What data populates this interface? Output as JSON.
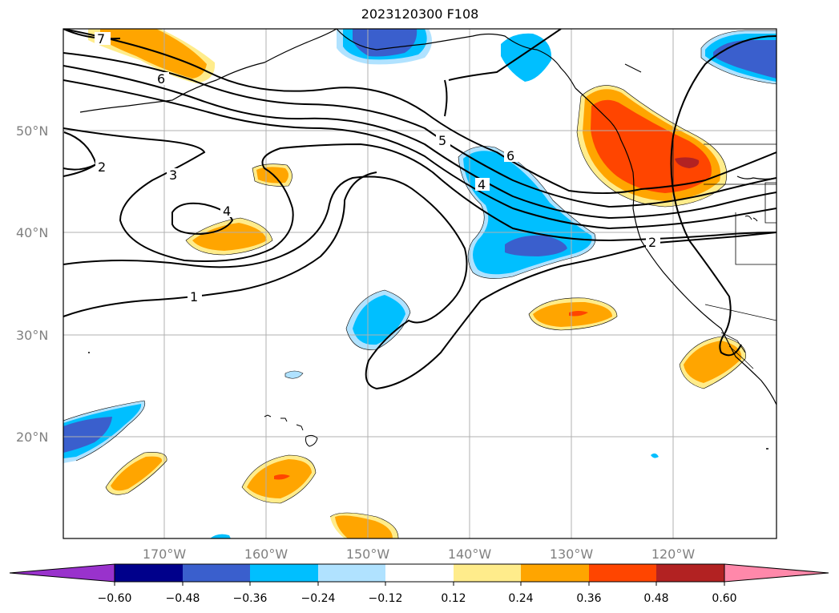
{
  "title": "2023120300 F108",
  "lat_labels": [
    "50°N",
    "40°N",
    "30°N",
    "20°N"
  ],
  "lon_labels": [
    "170°W",
    "160°W",
    "150°W",
    "140°W",
    "130°W",
    "120°W"
  ],
  "contour_labels": [
    "7",
    "6",
    "2",
    "3",
    "4",
    "1",
    "5",
    "4",
    "6",
    "2"
  ],
  "colorbar": {
    "ticks": [
      "−0.60",
      "−0.48",
      "−0.36",
      "−0.24",
      "−0.12",
      "0.12",
      "0.24",
      "0.36",
      "0.48",
      "0.60"
    ],
    "colors": [
      "#9932cc",
      "#00008b",
      "#3a5fcd",
      "#00bfff",
      "#b0e2ff",
      "#ffffff",
      "#ffec8b",
      "#ffa500",
      "#ff4500",
      "#b22222",
      "#ff88aa"
    ]
  },
  "colors": {
    "orange": "#ffa500",
    "light_yellow": "#ffec8b",
    "red_orange": "#ff4500",
    "dark_red": "#b22222",
    "deep_sky_blue": "#00bfff",
    "light_blue": "#b0e2ff",
    "royal_blue": "#3a5fcd",
    "grid": "#b0b0b0"
  }
}
